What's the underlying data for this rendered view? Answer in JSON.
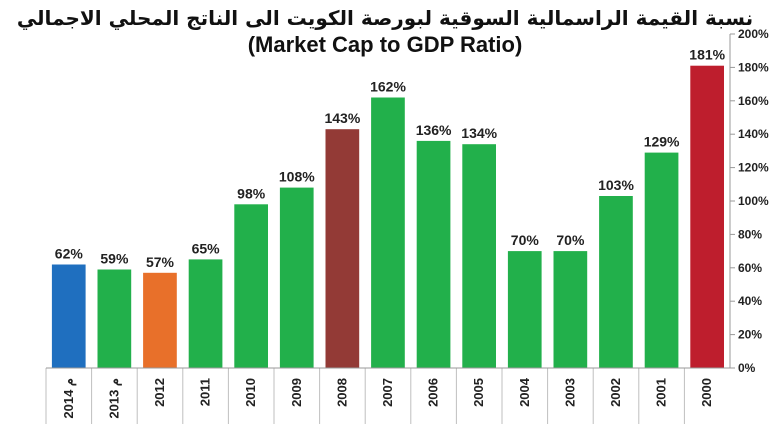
{
  "chart_data": {
    "type": "bar",
    "title": "نسبة القيمة الراسمالية السوقية لبورصة الكويت الى الناتج المحلي الاجمالي",
    "subtitle": "(Market Cap to GDP Ratio)",
    "categories": [
      "2014 م",
      "2013 م",
      "2012",
      "2011",
      "2010",
      "2009",
      "2008",
      "2007",
      "2006",
      "2005",
      "2004",
      "2003",
      "2002",
      "2001",
      "2000"
    ],
    "values": [
      62,
      59,
      57,
      65,
      98,
      108,
      143,
      162,
      136,
      134,
      70,
      70,
      103,
      129,
      181
    ],
    "value_labels": [
      "62%",
      "59%",
      "57%",
      "65%",
      "98%",
      "108%",
      "143%",
      "162%",
      "136%",
      "134%",
      "70%",
      "70%",
      "103%",
      "129%",
      "181%"
    ],
    "bar_colors": [
      "#1f6fbf",
      "#22b04b",
      "#e8702a",
      "#22b04b",
      "#22b04b",
      "#22b04b",
      "#933a36",
      "#22b04b",
      "#22b04b",
      "#22b04b",
      "#22b04b",
      "#22b04b",
      "#22b04b",
      "#22b04b",
      "#be1e2d"
    ],
    "y_ticks": [
      "0%",
      "20%",
      "40%",
      "60%",
      "80%",
      "100%",
      "120%",
      "140%",
      "160%",
      "180%",
      "200%"
    ],
    "ylim": [
      0,
      200
    ],
    "yaxis_position": "right",
    "grid": false,
    "legend": "none"
  }
}
